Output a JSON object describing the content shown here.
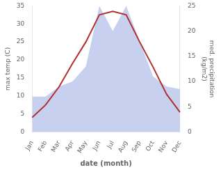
{
  "chart_data": {
    "type": "line",
    "categories": [
      "Jan",
      "Feb",
      "Mar",
      "Apr",
      "May",
      "Jun",
      "Jul",
      "Aug",
      "Sep",
      "Oct",
      "Nov",
      "Dec"
    ],
    "xlabel": "date (month)",
    "ylabel": "max temp (C)",
    "y2label": "med. precipitation\n(kg/m2)",
    "series": [
      {
        "type": "area",
        "axis": "y2",
        "color": "#c8d0f0",
        "values": [
          7.0,
          7.0,
          9.0,
          10.0,
          13.0,
          25.0,
          20.0,
          25.0,
          18.0,
          11.0,
          9.0,
          8.5
        ]
      },
      {
        "type": "line",
        "color": "#b03030",
        "values": [
          4.0,
          7.5,
          12.5,
          19.0,
          25.0,
          32.5,
          33.5,
          32.5,
          25.0,
          18.0,
          10.5,
          5.5
        ]
      }
    ],
    "ylim": [
      0,
      35
    ],
    "yticks": [
      0,
      5,
      10,
      15,
      20,
      25,
      30,
      35
    ],
    "y2lim": [
      0,
      25
    ],
    "y2ticks": [
      0,
      5,
      10,
      15,
      20,
      25
    ],
    "grid": false
  }
}
